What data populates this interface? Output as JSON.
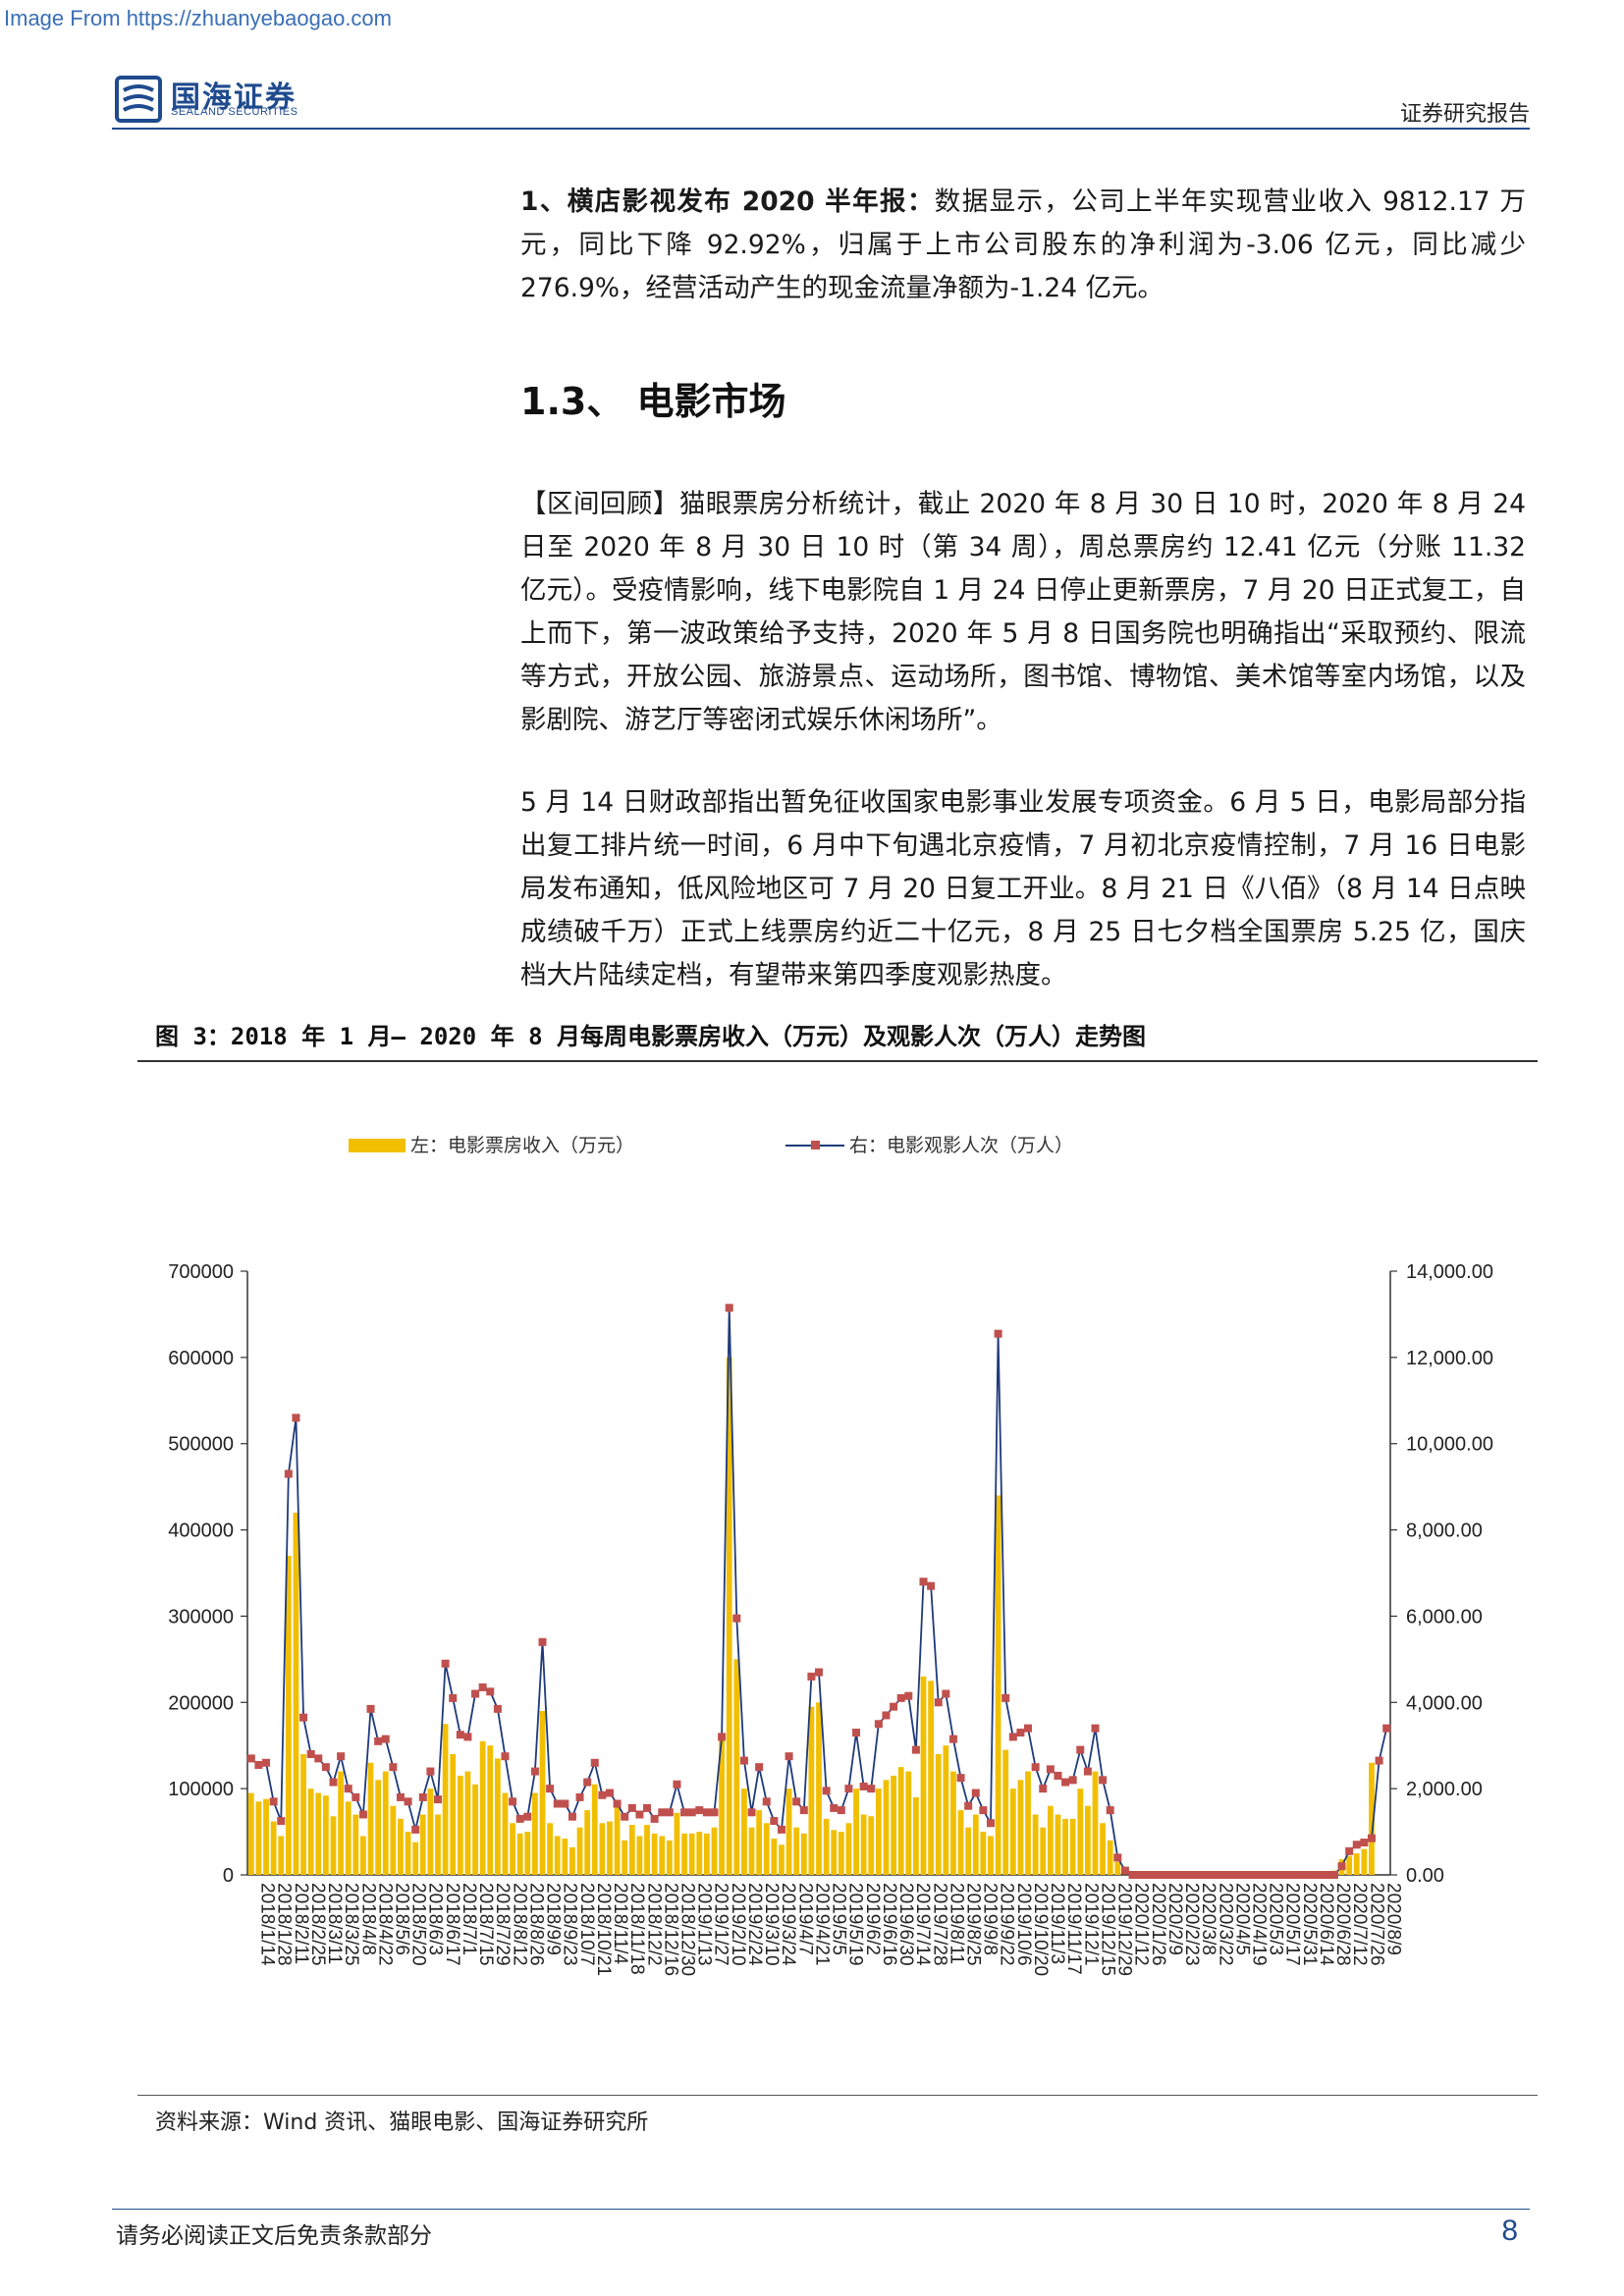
{
  "source_banner": "Image From https://zhuanyebaogao.com",
  "header": {
    "logo_cn": "国海证券",
    "logo_en": "SEALAND SECURITIES",
    "report_type": "证券研究报告"
  },
  "para1": {
    "lead": "1、横店影视发布 2020 半年报：",
    "body": "数据显示，公司上半年实现营业收入 9812.17 万元，同比下降 92.92%，归属于上市公司股东的净利润为-3.06 亿元，同比减少 276.9%，经营活动产生的现金流量净额为-1.24 亿元。"
  },
  "section_title": "1.3、 电影市场",
  "para2": "【区间回顾】猫眼票房分析统计，截止 2020 年 8 月 30 日 10 时，2020 年 8 月 24 日至 2020 年 8 月 30 日 10 时（第 34 周），周总票房约 12.41 亿元（分账 11.32 亿元）。受疫情影响，线下电影院自 1 月 24 日停止更新票房，7 月 20 日正式复工，自上而下，第一波政策给予支持，2020 年 5 月 8 日国务院也明确指出“采取预约、限流等方式，开放公园、旅游景点、运动场所，图书馆、博物馆、美术馆等室内场馆，以及影剧院、游艺厅等密闭式娱乐休闲场所”。",
  "para3": "5 月 14 日财政部指出暂免征收国家电影事业发展专项资金。6 月 5 日，电影局部分指出复工排片统一时间，6 月中下旬遇北京疫情，7 月初北京疫情控制，7 月 16 日电影局发布通知，低风险地区可 7 月 20 日复工开业。8 月 21 日《八佰》（8 月 14 日点映成绩破千万）正式上线票房约近二十亿元，8 月 25 日七夕档全国票房 5.25 亿，国庆档大片陆续定档，有望带来第四季度观影热度。",
  "figure": {
    "caption": "图 3：2018 年 1 月– 2020 年 8 月每周电影票房收入（万元）及观影人次（万人）走势图",
    "source": "资料来源：Wind 资讯、猫眼电影、国海证券研究所"
  },
  "chart_data": {
    "type": "bar+line",
    "legend": [
      "左：电影票房收入（万元）",
      "右：电影观影人次（万人）"
    ],
    "legend_position": "top",
    "colors": {
      "bar": "#f2bf00",
      "line": "#1f3a7a",
      "marker": "#c0504d"
    },
    "left_axis": {
      "ticks": [
        "700000",
        "600000",
        "500000",
        "400000",
        "300000",
        "200000",
        "100000",
        "0"
      ],
      "ylim": [
        0,
        700000
      ]
    },
    "right_axis": {
      "ticks": [
        "14,000.00",
        "12,000.00",
        "10,000.00",
        "8,000.00",
        "6,000.00",
        "4,000.00",
        "2,000.00",
        "0.00"
      ],
      "ylim": [
        0,
        14000
      ]
    },
    "x_tick_labels": [
      "2018/1/14",
      "2018/1/28",
      "2018/2/11",
      "2018/2/25",
      "2018/3/11",
      "2018/3/25",
      "2018/4/8",
      "2018/4/22",
      "2018/5/6",
      "2018/5/20",
      "2018/6/3",
      "2018/6/17",
      "2018/7/1",
      "2018/7/15",
      "2018/7/29",
      "2018/8/12",
      "2018/8/26",
      "2018/9/9",
      "2018/9/23",
      "2018/10/7",
      "2018/10/21",
      "2018/11/4",
      "2018/11/18",
      "2018/12/2",
      "2018/12/16",
      "2018/12/30",
      "2019/1/13",
      "2019/1/27",
      "2019/2/10",
      "2019/2/24",
      "2019/3/10",
      "2019/3/24",
      "2019/4/7",
      "2019/4/21",
      "2019/5/5",
      "2019/5/19",
      "2019/6/2",
      "2019/6/16",
      "2019/6/30",
      "2019/7/14",
      "2019/7/28",
      "2019/8/11",
      "2019/8/25",
      "2019/9/8",
      "2019/9/22",
      "2019/10/6",
      "2019/10/20",
      "2019/11/3",
      "2019/11/17",
      "2019/12/1",
      "2019/12/15",
      "2019/12/29",
      "2020/1/12",
      "2020/1/26",
      "2020/2/9",
      "2020/2/23",
      "2020/3/8",
      "2020/3/22",
      "2020/4/5",
      "2020/4/19",
      "2020/5/3",
      "2020/5/17",
      "2020/5/31",
      "2020/6/14",
      "2020/6/28",
      "2020/7/12",
      "2020/7/26",
      "2020/8/9"
    ],
    "box_office": [
      95000,
      85000,
      88000,
      62000,
      45000,
      370000,
      420000,
      140000,
      100000,
      95000,
      92000,
      68000,
      120000,
      85000,
      70000,
      45000,
      130000,
      110000,
      120000,
      80000,
      65000,
      50000,
      38000,
      70000,
      100000,
      70000,
      175000,
      140000,
      115000,
      120000,
      105000,
      155000,
      150000,
      135000,
      95000,
      60000,
      48000,
      50000,
      95000,
      190000,
      60000,
      45000,
      42000,
      32000,
      55000,
      75000,
      105000,
      60000,
      62000,
      80000,
      40000,
      58000,
      45000,
      58000,
      48000,
      45000,
      40000,
      72000,
      48000,
      48000,
      50000,
      48000,
      55000,
      160000,
      600000,
      250000,
      100000,
      55000,
      75000,
      60000,
      42000,
      35000,
      100000,
      55000,
      48000,
      195000,
      200000,
      65000,
      52000,
      50000,
      60000,
      100000,
      70000,
      68000,
      100000,
      110000,
      115000,
      125000,
      120000,
      90000,
      230000,
      225000,
      140000,
      150000,
      120000,
      75000,
      55000,
      70000,
      50000,
      45000,
      440000,
      145000,
      100000,
      110000,
      120000,
      70000,
      55000,
      80000,
      70000,
      65000,
      65000,
      100000,
      80000,
      120000,
      60000,
      40000,
      15000,
      0,
      0,
      0,
      0,
      0,
      0,
      0,
      0,
      0,
      0,
      0,
      0,
      0,
      0,
      0,
      0,
      0,
      0,
      0,
      0,
      0,
      0,
      0,
      0,
      0,
      0,
      0,
      0,
      5000,
      18000,
      22000,
      25000,
      30000,
      130000
    ],
    "attendance": [
      2700,
      2550,
      2600,
      1700,
      1250,
      9300,
      10600,
      3650,
      2800,
      2700,
      2500,
      2150,
      2750,
      2000,
      1800,
      1400,
      3850,
      3100,
      3150,
      2500,
      1800,
      1700,
      1050,
      1800,
      2400,
      1750,
      4900,
      4100,
      3250,
      3200,
      4200,
      4350,
      4250,
      3850,
      2750,
      1700,
      1300,
      1350,
      2400,
      5400,
      2000,
      1650,
      1650,
      1350,
      1800,
      2150,
      2600,
      1850,
      1900,
      1650,
      1350,
      1550,
      1400,
      1550,
      1300,
      1450,
      1450,
      2100,
      1450,
      1450,
      1500,
      1450,
      1450,
      3200,
      13150,
      5950,
      2650,
      1450,
      2500,
      1700,
      1250,
      1050,
      2750,
      1700,
      1500,
      4600,
      4700,
      1950,
      1550,
      1500,
      2000,
      3300,
      2050,
      2000,
      3500,
      3700,
      3900,
      4100,
      4150,
      2900,
      6800,
      6700,
      4000,
      4200,
      3150,
      2250,
      1600,
      1900,
      1500,
      1200,
      12550,
      4100,
      3200,
      3300,
      3400,
      2500,
      2000,
      2450,
      2300,
      2150,
      2200,
      2900,
      2400,
      3400,
      2200,
      1500,
      400,
      100,
      0,
      0,
      0,
      0,
      0,
      0,
      0,
      0,
      0,
      0,
      0,
      0,
      0,
      0,
      0,
      0,
      0,
      0,
      0,
      0,
      0,
      0,
      0,
      0,
      0,
      0,
      0,
      0,
      200,
      550,
      700,
      750,
      850,
      2650,
      3400
    ]
  }
}
